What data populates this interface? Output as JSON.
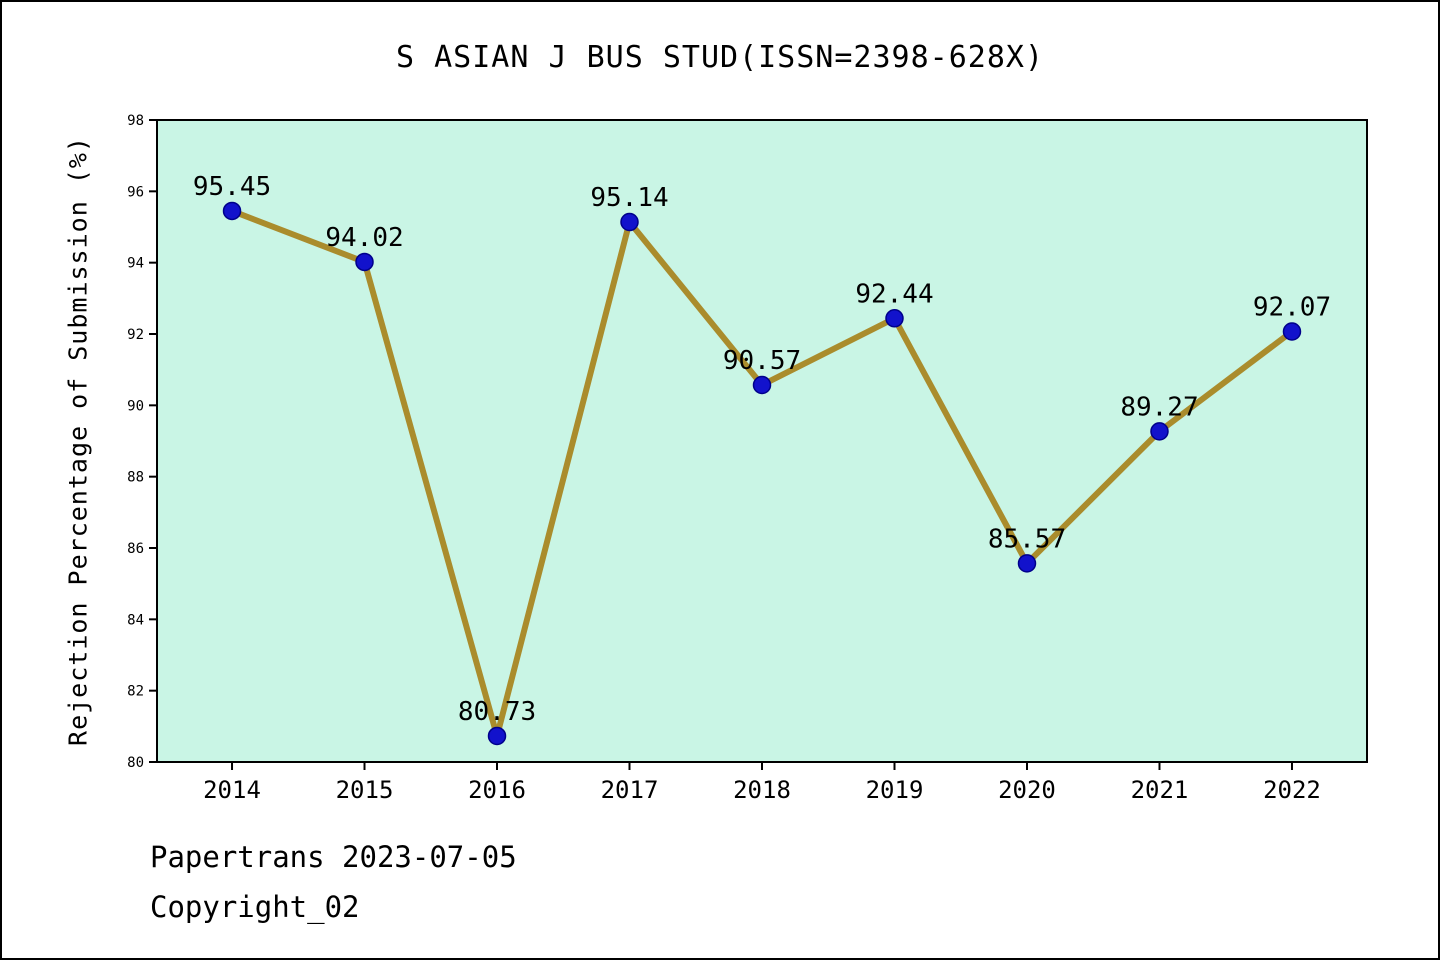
{
  "title": "S ASIAN J BUS STUD(ISSN=2398-628X)",
  "ylabel": "Rejection Percentage of Submission (%)",
  "footer": {
    "line1": "Papertrans 2023-07-05",
    "line2": "Copyright_02"
  },
  "colors": {
    "plot_bg": "#c9f5e5",
    "line": "#aa8c2c",
    "marker": "#1212cc",
    "marker_edge": "#00008b",
    "axis": "#000000"
  },
  "chart_data": {
    "type": "line",
    "x": [
      "2014",
      "2015",
      "2016",
      "2017",
      "2018",
      "2019",
      "2020",
      "2021",
      "2022"
    ],
    "values": [
      95.45,
      94.02,
      80.73,
      95.14,
      90.57,
      92.44,
      85.57,
      89.27,
      92.07
    ],
    "point_labels": [
      "95.45",
      "94.02",
      "80.73",
      "95.14",
      "90.57",
      "92.44",
      "85.57",
      "89.27",
      "92.07"
    ],
    "title": "S ASIAN J BUS STUD(ISSN=2398-628X)",
    "xlabel": "",
    "ylabel": "Rejection Percentage of Submission (%)",
    "ylim": [
      80,
      98
    ],
    "yticks": [
      80,
      82,
      84,
      86,
      88,
      90,
      92,
      94,
      96,
      98
    ],
    "grid": false,
    "legend": false
  }
}
